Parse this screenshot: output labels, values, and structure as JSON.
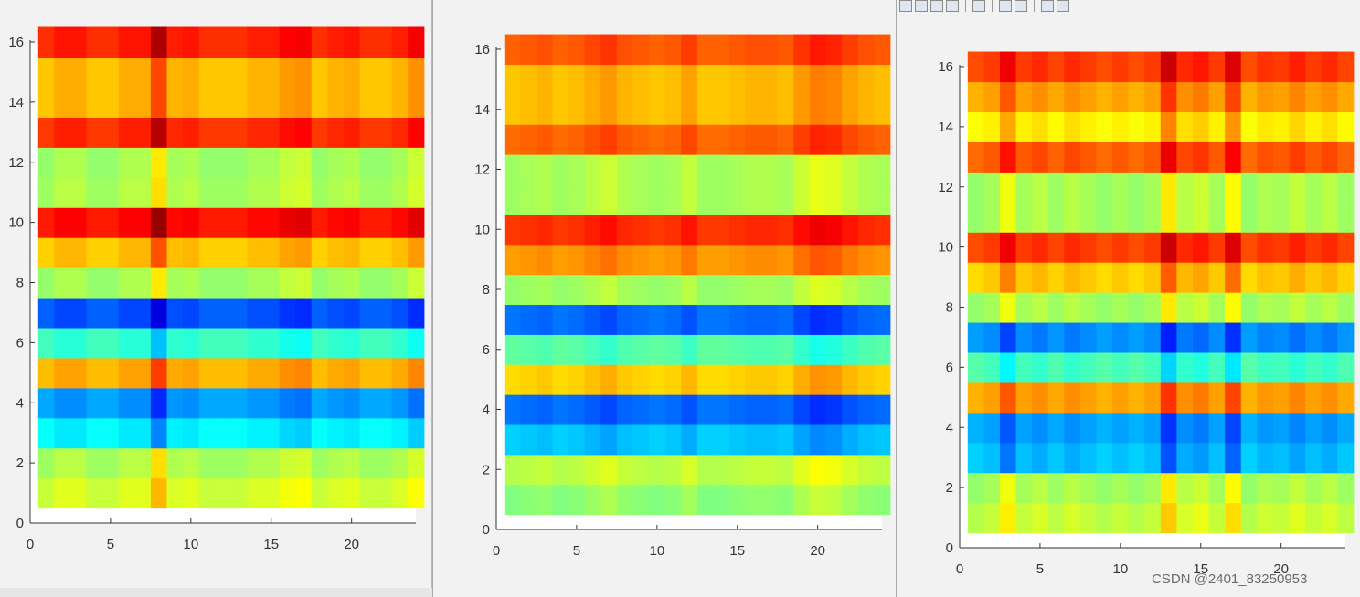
{
  "window": {
    "toolbar_icons": [
      "new-figure-icon",
      "open-file-icon",
      "save-icon",
      "print-icon",
      "link-icon",
      "insert-colorbar-icon",
      "insert-legend-icon",
      "edit-plot-icon",
      "property-inspector-icon"
    ]
  },
  "watermark": "CSDN @2401_83250953",
  "colormap": "jet",
  "colors": {
    "axis": "#333333",
    "panel_bg": "#f2f2f2",
    "plot_bg": "#ffffff"
  },
  "chart_data": [
    {
      "type": "heatmap",
      "title": "",
      "xlabel": "",
      "ylabel": "",
      "xlim": [
        0,
        24
      ],
      "ylim": [
        0,
        16
      ],
      "xticks": [
        0,
        5,
        10,
        15,
        20
      ],
      "yticks": [
        0,
        2,
        4,
        6,
        8,
        10,
        12,
        14,
        16
      ],
      "grid": false,
      "n_cols": 24,
      "n_rows": 16,
      "row_values": [
        0.57,
        0.53,
        0.38,
        0.29,
        0.69,
        0.44,
        0.22,
        0.52,
        0.67,
        0.85,
        0.53,
        0.52,
        0.82,
        0.68,
        0.68,
        0.83
      ],
      "col_offsets": [
        0.0,
        0.03,
        0.03,
        0.0,
        0.0,
        0.03,
        0.03,
        0.14,
        0.02,
        0.03,
        0.0,
        0.0,
        0.0,
        0.02,
        0.02,
        0.05,
        0.06,
        0.0,
        0.02,
        0.03,
        0.0,
        0.0,
        0.02,
        0.06
      ]
    },
    {
      "type": "heatmap",
      "title": "",
      "xlabel": "",
      "ylabel": "",
      "xlim": [
        0,
        24
      ],
      "ylim": [
        0,
        16
      ],
      "xticks": [
        0,
        5,
        10,
        15,
        20
      ],
      "yticks": [
        0,
        2,
        4,
        6,
        8,
        10,
        12,
        14,
        16
      ],
      "grid": false,
      "n_cols": 24,
      "n_rows": 16,
      "row_values": [
        0.5,
        0.55,
        0.33,
        0.24,
        0.66,
        0.47,
        0.24,
        0.52,
        0.72,
        0.82,
        0.53,
        0.53,
        0.77,
        0.68,
        0.68,
        0.78
      ],
      "col_offsets": [
        0.0,
        0.01,
        0.02,
        0.0,
        0.01,
        0.03,
        0.05,
        0.02,
        0.01,
        0.0,
        0.01,
        0.04,
        0.0,
        0.0,
        0.01,
        0.02,
        0.02,
        0.01,
        0.05,
        0.08,
        0.07,
        0.04,
        0.02,
        0.01
      ]
    },
    {
      "type": "heatmap",
      "title": "",
      "xlabel": "",
      "ylabel": "",
      "xlim": [
        0,
        24
      ],
      "ylim": [
        0,
        16
      ],
      "xticks": [
        0,
        5,
        10,
        15,
        20
      ],
      "yticks": [
        0,
        2,
        4,
        6,
        8,
        10,
        12,
        14,
        16
      ],
      "grid": false,
      "n_cols": 24,
      "n_rows": 16,
      "row_values": [
        0.55,
        0.52,
        0.33,
        0.3,
        0.7,
        0.46,
        0.28,
        0.52,
        0.66,
        0.8,
        0.52,
        0.52,
        0.77,
        0.62,
        0.7,
        0.8
      ],
      "col_offsets": [
        0.0,
        0.02,
        0.1,
        0.02,
        0.04,
        0.01,
        0.04,
        0.02,
        0.0,
        0.02,
        0.0,
        0.02,
        0.14,
        0.04,
        0.06,
        0.02,
        0.12,
        0.0,
        0.03,
        0.02,
        0.05,
        0.02,
        0.04,
        0.01
      ]
    }
  ]
}
